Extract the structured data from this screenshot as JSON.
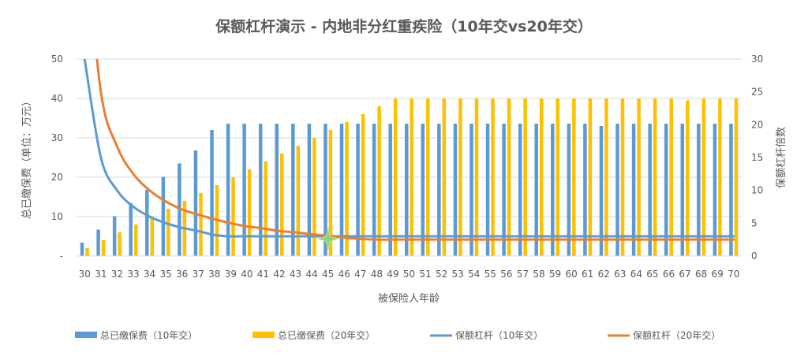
{
  "chart_data": {
    "type": "bar",
    "title": "保额杠杆演示 - 内地非分红重疾险（10年交vs20年交）",
    "xlabel": "被保险人年龄",
    "ylabel_left": "总已缴保费（单位：万元）",
    "ylabel_right": "保额杠杆倍数",
    "categories": [
      "30",
      "31",
      "32",
      "33",
      "34",
      "35",
      "36",
      "37",
      "38",
      "39",
      "40",
      "41",
      "42",
      "43",
      "44",
      "45",
      "46",
      "47",
      "48",
      "49",
      "50",
      "51",
      "52",
      "53",
      "54",
      "55",
      "56",
      "57",
      "58",
      "59",
      "60",
      "61",
      "62",
      "63",
      "64",
      "65",
      "66",
      "67",
      "68",
      "69",
      "70"
    ],
    "ylim_left": [
      0,
      50
    ],
    "yticks_left": [
      "-",
      "10",
      "20",
      "30",
      "40",
      "50"
    ],
    "ylim_right": [
      0,
      30
    ],
    "yticks_right": [
      "0",
      "5",
      "10",
      "15",
      "20",
      "25",
      "30"
    ],
    "legend_position": "bottom",
    "grid": true,
    "series": [
      {
        "name": "总已缴保费（10年交）",
        "kind": "bar",
        "axis": "left",
        "color": "#5B9BD5",
        "values": [
          3.4,
          6.7,
          10.1,
          13.4,
          16.8,
          20.1,
          23.5,
          26.8,
          32.0,
          33.6,
          33.6,
          33.6,
          33.6,
          33.6,
          33.6,
          33.6,
          33.6,
          33.6,
          33.6,
          33.6,
          33.6,
          33.6,
          33.6,
          33.6,
          33.6,
          33.6,
          33.6,
          33.6,
          33.6,
          33.6,
          33.6,
          33.6,
          33.0,
          33.6,
          33.6,
          33.6,
          33.6,
          33.6,
          33.6,
          33.6,
          33.6
        ]
      },
      {
        "name": "总已缴保费（20年交）",
        "kind": "bar",
        "axis": "left",
        "color": "#FFC000",
        "values": [
          2.0,
          4.0,
          6.0,
          8.0,
          10.0,
          12.0,
          14.0,
          16.0,
          18.0,
          20.0,
          22.0,
          24.0,
          26.0,
          28.0,
          30.0,
          32.0,
          34.0,
          36.0,
          38.0,
          40.0,
          40.0,
          40.0,
          40.0,
          40.0,
          40.0,
          40.0,
          40.0,
          40.0,
          40.0,
          40.0,
          40.0,
          40.0,
          40.0,
          40.0,
          40.0,
          40.0,
          40.0,
          39.5,
          40.0,
          40.0,
          40.0
        ]
      },
      {
        "name": "保额杠杆（10年交）",
        "kind": "line",
        "axis": "right",
        "color": "#5B9BD5",
        "values": [
          30,
          15,
          10,
          7.5,
          6,
          5,
          4.3,
          3.8,
          3.2,
          3,
          3,
          3,
          3,
          3,
          3,
          3,
          3,
          3,
          3,
          3,
          3,
          3,
          3,
          3,
          3,
          3,
          3,
          3,
          3,
          3,
          3,
          3,
          3,
          3,
          3,
          3,
          3,
          3,
          3,
          3,
          3
        ]
      },
      {
        "name": "保额杠杆（20年交）",
        "kind": "line",
        "axis": "right",
        "color": "#ED7D31",
        "values": [
          50,
          25,
          16.7,
          12.5,
          10,
          8.3,
          7.1,
          6.3,
          5.6,
          5,
          4.5,
          4.2,
          3.8,
          3.6,
          3.3,
          3.1,
          2.8,
          2.6,
          2.5,
          2.5,
          2.5,
          2.5,
          2.5,
          2.5,
          2.5,
          2.5,
          2.5,
          2.5,
          2.5,
          2.5,
          2.5,
          2.5,
          2.5,
          2.5,
          2.5,
          2.5,
          2.5,
          2.5,
          2.5,
          2.5,
          2.5
        ]
      }
    ],
    "annotation": {
      "shape": "star",
      "category": "45",
      "right_axis_value": 2.6,
      "color": "#8FD17A"
    }
  }
}
